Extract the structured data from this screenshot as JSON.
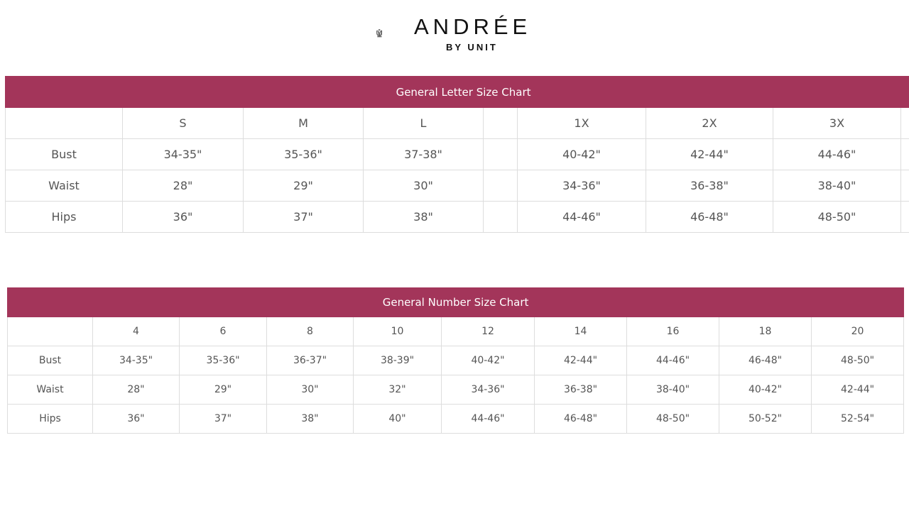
{
  "brand": {
    "name": "ANDRÉE",
    "tagline": "BY UNIT",
    "accent": "#a3355a"
  },
  "letter_chart": {
    "title": "General Letter Size Chart",
    "sizes": [
      "S",
      "M",
      "L",
      "",
      "1X",
      "2X",
      "3X",
      ""
    ],
    "rows": [
      {
        "label": "Bust",
        "values": [
          "34-35\"",
          "35-36\"",
          "37-38\"",
          "",
          "40-42\"",
          "42-44\"",
          "44-46\"",
          ""
        ]
      },
      {
        "label": "Waist",
        "values": [
          "28\"",
          "29\"",
          "30\"",
          "",
          "34-36\"",
          "36-38\"",
          "38-40\"",
          ""
        ]
      },
      {
        "label": "Hips",
        "values": [
          "36\"",
          "37\"",
          "38\"",
          "",
          "44-46\"",
          "46-48\"",
          "48-50\"",
          ""
        ]
      }
    ]
  },
  "number_chart": {
    "title": "General Number Size Chart",
    "sizes": [
      "4",
      "6",
      "8",
      "10",
      "12",
      "14",
      "16",
      "18",
      "20"
    ],
    "rows": [
      {
        "label": "Bust",
        "values": [
          "34-35\"",
          "35-36\"",
          "36-37\"",
          "38-39\"",
          "40-42\"",
          "42-44\"",
          "44-46\"",
          "46-48\"",
          "48-50\""
        ]
      },
      {
        "label": "Waist",
        "values": [
          "28\"",
          "29\"",
          "30\"",
          "32\"",
          "34-36\"",
          "36-38\"",
          "38-40\"",
          "40-42\"",
          "42-44\""
        ]
      },
      {
        "label": "Hips",
        "values": [
          "36\"",
          "37\"",
          "38\"",
          "40\"",
          "44-46\"",
          "46-48\"",
          "48-50\"",
          "50-52\"",
          "52-54\""
        ]
      }
    ]
  }
}
